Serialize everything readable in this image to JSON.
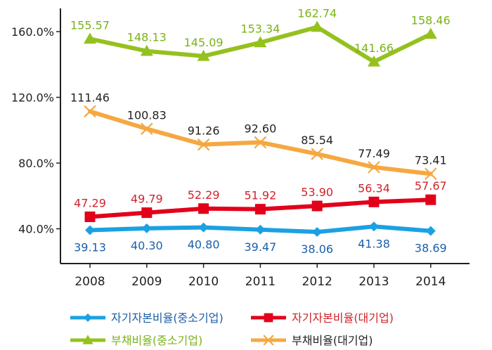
{
  "chart_data": {
    "type": "line",
    "categories": [
      "2008",
      "2009",
      "2010",
      "2011",
      "2012",
      "2013",
      "2014"
    ],
    "ylim": [
      20,
      170
    ],
    "yticks": [
      {
        "value": 40,
        "label": "40.0%"
      },
      {
        "value": 80,
        "label": "80.0%"
      },
      {
        "value": 120,
        "label": "120.0%"
      },
      {
        "value": 160,
        "label": "160.0%"
      }
    ],
    "grid": false,
    "legend_position": "bottom",
    "series": [
      {
        "name": "부채비율(중소기업)",
        "values": [
          155.57,
          148.13,
          145.09,
          153.34,
          162.74,
          141.66,
          158.46
        ],
        "labels": [
          "155.57",
          "148.13",
          "145.09",
          "153.34",
          "162.74",
          "141.66",
          "158.46"
        ],
        "color": "#95c11f",
        "label_color": "#7ab317",
        "marker": "triangle",
        "label_position": "above"
      },
      {
        "name": "부채비율(대기업)",
        "values": [
          111.46,
          100.83,
          91.26,
          92.6,
          85.54,
          77.49,
          73.41
        ],
        "labels": [
          "111.46",
          "100.83",
          "91.26",
          "92.60",
          "85.54",
          "77.49",
          "73.41"
        ],
        "color": "#f5a841",
        "label_color": "#231f20",
        "marker": "x",
        "label_position": "above"
      },
      {
        "name": "자기자본비율(대기업)",
        "values": [
          47.29,
          49.79,
          52.29,
          51.92,
          53.9,
          56.34,
          57.67
        ],
        "labels": [
          "47.29",
          "49.79",
          "52.29",
          "51.92",
          "53.90",
          "56.34",
          "57.67"
        ],
        "color": "#e2001a",
        "label_color": "#d2232a",
        "marker": "square",
        "label_position": "above"
      },
      {
        "name": "자기자본비율(중소기업)",
        "values": [
          39.13,
          40.3,
          40.8,
          39.47,
          38.06,
          41.38,
          38.69
        ],
        "labels": [
          "39.13",
          "40.30",
          "40.80",
          "39.47",
          "38.06",
          "41.38",
          "38.69"
        ],
        "color": "#1ba1e2",
        "label_color": "#1b5fa8",
        "marker": "diamond",
        "label_position": "below"
      }
    ],
    "legend": [
      {
        "series": 3,
        "label": "자기자본비율(중소기업)",
        "color": "#1ba1e2",
        "label_color": "#1b5fa8",
        "marker": "diamond"
      },
      {
        "series": 2,
        "label": "자기자본비율(대기업)",
        "color": "#e2001a",
        "label_color": "#d2232a",
        "marker": "square"
      },
      {
        "series": 0,
        "label": "부채비율(중소기업)",
        "color": "#95c11f",
        "label_color": "#7ab317",
        "marker": "triangle"
      },
      {
        "series": 1,
        "label": "부채비율(대기업)",
        "color": "#f5a841",
        "label_color": "#231f20",
        "marker": "x"
      }
    ]
  }
}
